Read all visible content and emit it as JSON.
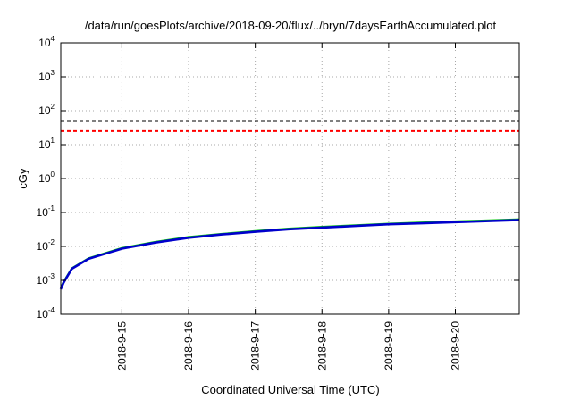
{
  "chart_data": {
    "type": "line",
    "title": "/data/run/goesPlots/archive/2018-09-20/flux/../bryn/7daysEarthAccumulated.plot",
    "xlabel": "Coordinated Universal Time (UTC)",
    "ylabel": "cGy",
    "y_scale": "log",
    "ylim": [
      0.0001,
      10000
    ],
    "xlim": [
      "2018-09-14T02:00",
      "2018-09-20T23:00"
    ],
    "x_ticks": [
      {
        "date": "2018-09-15",
        "label": "2018-9-15"
      },
      {
        "date": "2018-09-16",
        "label": "2018-9-16"
      },
      {
        "date": "2018-09-17",
        "label": "2018-9-17"
      },
      {
        "date": "2018-09-18",
        "label": "2018-9-18"
      },
      {
        "date": "2018-09-19",
        "label": "2018-9-19"
      },
      {
        "date": "2018-09-20",
        "label": "2018-9-20"
      }
    ],
    "y_ticks": [
      {
        "value": 0.0001,
        "base": "10",
        "exp": "-4"
      },
      {
        "value": 0.001,
        "base": "10",
        "exp": "-3"
      },
      {
        "value": 0.01,
        "base": "10",
        "exp": "-2"
      },
      {
        "value": 0.1,
        "base": "10",
        "exp": "-1"
      },
      {
        "value": 1,
        "base": "10",
        "exp": "0"
      },
      {
        "value": 10,
        "base": "10",
        "exp": "1"
      },
      {
        "value": 100,
        "base": "10",
        "exp": "2"
      },
      {
        "value": 1000,
        "base": "10",
        "exp": "3"
      },
      {
        "value": 10000,
        "base": "10",
        "exp": "4"
      }
    ],
    "grid": true,
    "reference_lines": [
      {
        "value": 50,
        "color": "#000000",
        "style": "dashed"
      },
      {
        "value": 25,
        "color": "#ff0000",
        "style": "dashed"
      }
    ],
    "series": [
      {
        "color": "#00cc00",
        "x": [
          "2018-09-14T02:00",
          "2018-09-14T03:00",
          "2018-09-14T06:00",
          "2018-09-14T12:00",
          "2018-09-15T00:00",
          "2018-09-15T12:00",
          "2018-09-16T00:00",
          "2018-09-16T12:00",
          "2018-09-17T00:00",
          "2018-09-17T12:00",
          "2018-09-18T00:00",
          "2018-09-18T12:00",
          "2018-09-19T00:00",
          "2018-09-19T12:00",
          "2018-09-20T00:00",
          "2018-09-20T12:00",
          "2018-09-20T23:00"
        ],
        "y": [
          0.0006,
          0.0009,
          0.0023,
          0.0045,
          0.009,
          0.0136,
          0.019,
          0.0235,
          0.0285,
          0.0335,
          0.038,
          0.042,
          0.047,
          0.051,
          0.055,
          0.059,
          0.063
        ]
      },
      {
        "color": "#0000cc",
        "x": [
          "2018-09-14T02:00",
          "2018-09-14T03:00",
          "2018-09-14T06:00",
          "2018-09-14T12:00",
          "2018-09-15T00:00",
          "2018-09-15T12:00",
          "2018-09-16T00:00",
          "2018-09-16T12:00",
          "2018-09-17T00:00",
          "2018-09-17T12:00",
          "2018-09-18T00:00",
          "2018-09-18T12:00",
          "2018-09-19T00:00",
          "2018-09-19T12:00",
          "2018-09-20T00:00",
          "2018-09-20T12:00",
          "2018-09-20T23:00"
        ],
        "y": [
          0.00055,
          0.00085,
          0.0022,
          0.0043,
          0.0086,
          0.013,
          0.018,
          0.0225,
          0.027,
          0.032,
          0.036,
          0.04,
          0.045,
          0.048,
          0.052,
          0.056,
          0.06
        ]
      }
    ]
  }
}
